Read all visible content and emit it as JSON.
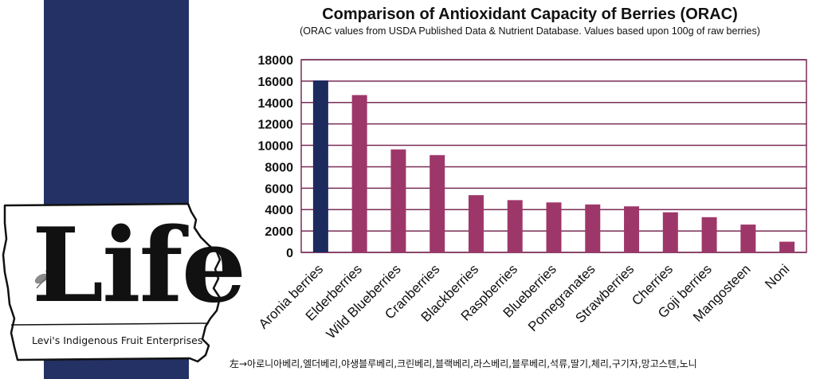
{
  "logo": {
    "word": "Life",
    "tagline": "Levi's Indigenous Fruit Enterprises"
  },
  "colors": {
    "navy": "#243165",
    "bar_highlight": "#1c2a5e",
    "bar_default": "#9e3769",
    "grid": "#7a2b55"
  },
  "footer": {
    "korean": "左→아로니아베리,엘더베리,야생블루베리,크린베리,블랙베리,라스베리,블루베리,석류,딸기,체리,구기자,망고스텐,노니"
  },
  "chart_data": {
    "type": "bar",
    "title": "Comparison of Antioxidant Capacity of Berries (ORAC)",
    "subtitle": "(ORAC values from USDA Published Data & Nutrient Database. Values based upon 100g of raw berries)",
    "xlabel": "",
    "ylabel": "",
    "ylim": [
      0,
      18000
    ],
    "yticks": [
      0,
      2000,
      4000,
      6000,
      8000,
      10000,
      12000,
      14000,
      16000,
      18000
    ],
    "grid": true,
    "categories": [
      "Aronia berries",
      "Elderberries",
      "Wild Blueberries",
      "Cranberries",
      "Blackberries",
      "Raspberries",
      "Blueberries",
      "Pomegranates",
      "Strawberries",
      "Cherries",
      "Goji berries",
      "Mangosteen",
      "Noni"
    ],
    "values": [
      16062,
      14697,
      9621,
      9090,
      5347,
      4882,
      4669,
      4479,
      4302,
      3747,
      3290,
      2600,
      1000
    ],
    "highlight_index": 0
  }
}
